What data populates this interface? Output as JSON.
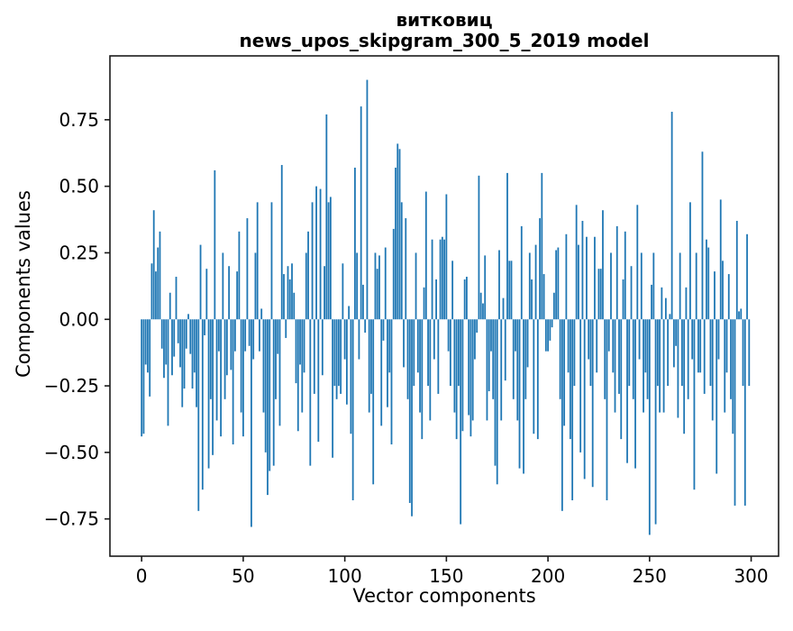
{
  "title": {
    "line1": "витковиц",
    "line2": "news_upos_skipgram_300_5_2019 model"
  },
  "axes": {
    "xlabel": "Vector components",
    "ylabel": "Components values"
  },
  "chart_data": {
    "type": "bar",
    "title": "витковиц — news_upos_skipgram_300_5_2019 model",
    "xlabel": "Vector components",
    "ylabel": "Components values",
    "bar_color": "#1f77b4",
    "frame_color": "#1a1a1a",
    "background": "#ffffff",
    "legend": "none",
    "grid": false,
    "n_components": 300,
    "x_start_index": 0,
    "bar_width_data_units": 0.8,
    "xlim": [
      -15.6,
      313.5
    ],
    "ylim": [
      -0.89,
      0.99
    ],
    "x_ticks": [
      0,
      50,
      100,
      150,
      200,
      250,
      300
    ],
    "y_ticks": [
      0.75,
      0.5,
      0.25,
      0.0,
      -0.25,
      -0.5,
      -0.75
    ],
    "values": [
      -0.44,
      -0.43,
      -0.17,
      -0.2,
      -0.29,
      0.21,
      0.41,
      0.18,
      0.27,
      0.33,
      -0.11,
      -0.22,
      -0.17,
      -0.4,
      0.1,
      -0.21,
      -0.14,
      0.16,
      -0.09,
      -0.18,
      -0.33,
      -0.26,
      -0.11,
      0.02,
      -0.13,
      -0.26,
      -0.2,
      -0.33,
      -0.72,
      0.28,
      -0.64,
      -0.06,
      0.19,
      -0.56,
      -0.3,
      -0.51,
      0.56,
      -0.38,
      -0.12,
      -0.44,
      0.25,
      -0.3,
      -0.21,
      0.2,
      -0.19,
      -0.47,
      -0.12,
      0.18,
      0.33,
      -0.35,
      -0.44,
      -0.12,
      0.38,
      -0.1,
      -0.78,
      -0.15,
      0.25,
      0.44,
      -0.12,
      0.04,
      -0.35,
      -0.5,
      -0.66,
      -0.57,
      0.44,
      -0.55,
      -0.3,
      -0.13,
      -0.4,
      0.58,
      0.17,
      -0.07,
      0.2,
      0.15,
      0.21,
      0.1,
      -0.24,
      -0.42,
      -0.17,
      -0.35,
      -0.2,
      0.25,
      0.33,
      -0.55,
      0.44,
      -0.28,
      0.5,
      -0.46,
      0.49,
      -0.21,
      0.2,
      0.77,
      0.44,
      0.46,
      -0.52,
      -0.25,
      -0.3,
      -0.25,
      -0.28,
      0.21,
      -0.15,
      -0.32,
      0.05,
      -0.43,
      -0.68,
      0.57,
      0.25,
      -0.15,
      0.8,
      0.13,
      -0.05,
      0.9,
      -0.35,
      -0.28,
      -0.62,
      0.25,
      0.19,
      0.24,
      -0.4,
      -0.08,
      0.27,
      -0.33,
      -0.2,
      -0.47,
      0.34,
      0.57,
      0.66,
      0.64,
      0.44,
      -0.18,
      0.38,
      -0.3,
      -0.69,
      -0.74,
      -0.25,
      0.25,
      -0.2,
      -0.35,
      -0.45,
      0.12,
      0.48,
      -0.25,
      -0.38,
      0.3,
      -0.15,
      0.15,
      -0.28,
      0.3,
      0.31,
      0.3,
      0.47,
      -0.12,
      -0.25,
      0.22,
      -0.35,
      -0.45,
      -0.25,
      -0.77,
      -0.42,
      0.15,
      0.16,
      -0.36,
      -0.44,
      -0.38,
      -0.15,
      -0.05,
      0.54,
      0.1,
      0.06,
      0.24,
      -0.38,
      -0.27,
      -0.12,
      -0.3,
      -0.55,
      -0.62,
      0.26,
      -0.38,
      0.08,
      -0.23,
      0.55,
      0.22,
      0.22,
      -0.3,
      -0.12,
      -0.38,
      -0.56,
      0.35,
      -0.58,
      -0.3,
      -0.18,
      0.25,
      0.15,
      -0.43,
      0.28,
      -0.45,
      0.38,
      0.55,
      0.17,
      -0.12,
      -0.12,
      -0.08,
      -0.03,
      0.1,
      0.26,
      0.27,
      -0.3,
      -0.72,
      -0.4,
      0.32,
      -0.2,
      -0.45,
      -0.68,
      -0.25,
      0.43,
      0.28,
      -0.5,
      0.37,
      -0.6,
      0.31,
      -0.15,
      -0.25,
      -0.63,
      0.31,
      -0.2,
      0.19,
      0.19,
      0.41,
      -0.3,
      -0.68,
      -0.12,
      0.25,
      -0.2,
      -0.35,
      0.35,
      -0.28,
      -0.45,
      0.15,
      0.33,
      -0.54,
      -0.25,
      0.2,
      -0.3,
      -0.56,
      0.43,
      -0.15,
      0.25,
      -0.35,
      -0.2,
      -0.3,
      -0.81,
      0.13,
      0.25,
      -0.77,
      -0.25,
      -0.35,
      0.12,
      -0.35,
      0.08,
      -0.25,
      0.02,
      0.78,
      -0.18,
      -0.1,
      -0.37,
      0.25,
      -0.25,
      -0.43,
      0.12,
      -0.3,
      0.44,
      -0.15,
      -0.64,
      0.25,
      -0.2,
      -0.2,
      0.63,
      -0.28,
      0.3,
      0.27,
      -0.25,
      -0.38,
      0.18,
      -0.58,
      -0.15,
      0.45,
      0.22,
      -0.35,
      -0.2,
      0.17,
      -0.3,
      -0.43,
      -0.7,
      0.37,
      0.03,
      0.04,
      -0.25,
      -0.7,
      0.32,
      -0.25
    ]
  }
}
